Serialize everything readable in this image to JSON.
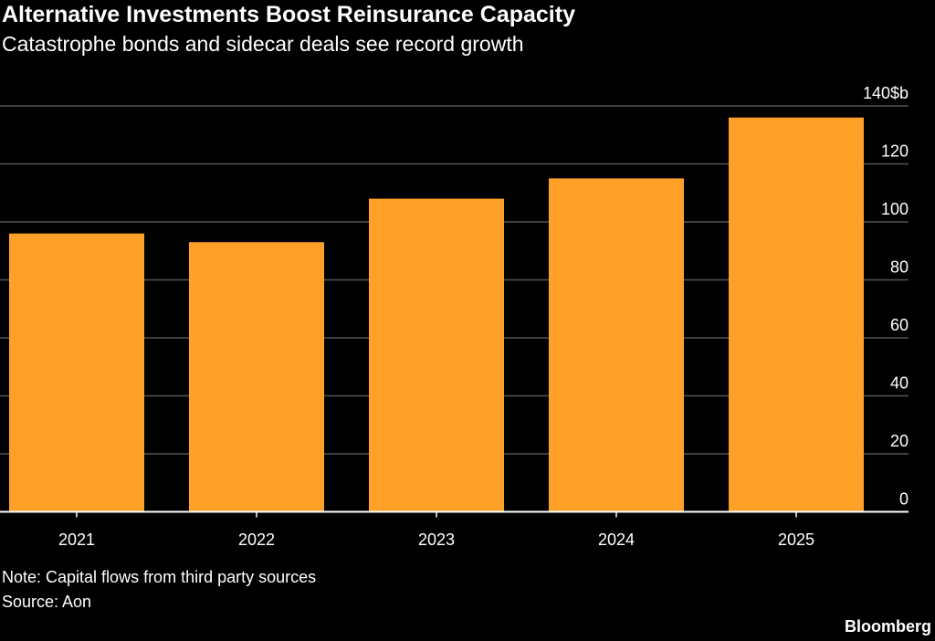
{
  "title": "Alternative Investments Boost Reinsurance Capacity",
  "subtitle": "Catastrophe bonds and sidecar deals see record growth",
  "note": "Note: Capital flows from third party sources",
  "source": "Source: Aon",
  "logo": "Bloomberg",
  "chart_data": {
    "type": "bar",
    "categories": [
      "2021",
      "2022",
      "2023",
      "2024",
      "2025"
    ],
    "values": [
      96,
      93,
      108,
      115,
      136
    ],
    "unit": "$b",
    "ylim": [
      0,
      140
    ],
    "yticks": [
      0,
      20,
      40,
      60,
      80,
      100,
      120,
      140
    ],
    "ytick_labels": [
      "0",
      "20",
      "40",
      "60",
      "80",
      "100",
      "120",
      "140$b"
    ],
    "axis_side": "right",
    "grid": true,
    "bar_color": "#FFA028",
    "grid_color": "#555555"
  }
}
